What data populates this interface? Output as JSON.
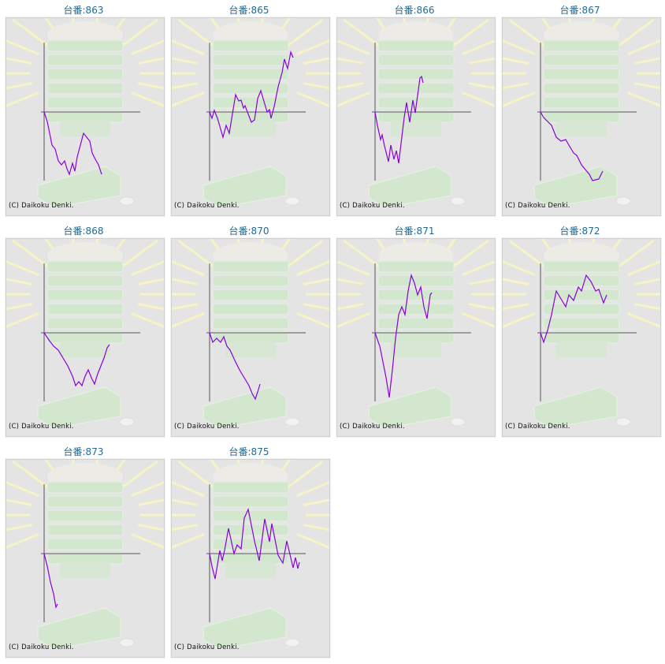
{
  "copyright": "(C) Daikoku Denki.",
  "colors": {
    "line": "#8800dd",
    "axis": "#555555",
    "title": "#1f6a95",
    "panel_bg": "#e4e4e4"
  },
  "charts": [
    {
      "title": "台番:863"
    },
    {
      "title": "台番:865"
    },
    {
      "title": "台番:866"
    },
    {
      "title": "台番:867"
    },
    {
      "title": "台番:868"
    },
    {
      "title": "台番:870"
    },
    {
      "title": "台番:871"
    },
    {
      "title": "台番:872"
    },
    {
      "title": "台番:873"
    },
    {
      "title": "台番:875"
    }
  ],
  "chart_data": [
    {
      "type": "line",
      "xlim": [
        0,
        122
      ],
      "ylim": [
        -88,
        88
      ],
      "x": [
        0,
        4,
        7,
        10,
        14,
        18,
        22,
        26,
        29,
        32,
        36,
        39,
        42,
        46,
        50,
        54,
        58,
        61,
        65,
        69,
        73
      ],
      "y": [
        0,
        -12,
        -27,
        -42,
        -47,
        -62,
        -67,
        -62,
        -72,
        -79,
        -65,
        -75,
        -57,
        -42,
        -27,
        -32,
        -37,
        -52,
        -60,
        -67,
        -79
      ]
    },
    {
      "type": "line",
      "xlim": [
        0,
        122
      ],
      "ylim": [
        -88,
        88
      ],
      "x": [
        0,
        3,
        6,
        10,
        17,
        21,
        25,
        33,
        37,
        40,
        43,
        45,
        53,
        57,
        61,
        65,
        73,
        76,
        78,
        82,
        87,
        92,
        95,
        99,
        103,
        106
      ],
      "y": [
        0,
        -8,
        2,
        -8,
        -32,
        -17,
        -27,
        22,
        14,
        15,
        5,
        8,
        -13,
        -10,
        17,
        27,
        0,
        3,
        -8,
        7,
        32,
        50,
        67,
        55,
        76,
        69
      ]
    },
    {
      "type": "line",
      "xlim": [
        0,
        122
      ],
      "ylim": [
        -88,
        88
      ],
      "x": [
        0,
        3,
        7,
        9,
        12,
        17,
        20,
        24,
        27,
        30,
        33,
        37,
        40,
        44,
        48,
        51,
        57,
        59,
        61
      ],
      "y": [
        0,
        -17,
        -35,
        -29,
        -43,
        -63,
        -42,
        -60,
        -49,
        -65,
        -40,
        -7,
        12,
        -13,
        15,
        -1,
        43,
        45,
        37
      ]
    },
    {
      "type": "line",
      "xlim": [
        0,
        122
      ],
      "ylim": [
        -88,
        88
      ],
      "x": [
        0,
        4,
        9,
        14,
        20,
        26,
        32,
        36,
        42,
        46,
        52,
        56,
        62,
        66,
        74,
        79
      ],
      "y": [
        0,
        -7,
        -12,
        -17,
        -32,
        -37,
        -35,
        -42,
        -52,
        -55,
        -67,
        -72,
        -79,
        -87,
        -85,
        -75
      ]
    },
    {
      "type": "line",
      "xlim": [
        0,
        122
      ],
      "ylim": [
        -88,
        88
      ],
      "x": [
        0,
        6,
        12,
        18,
        24,
        30,
        36,
        40,
        44,
        48,
        52,
        56,
        60,
        64,
        68,
        72,
        76,
        80,
        83
      ],
      "y": [
        0,
        -9,
        -17,
        -22,
        -32,
        -42,
        -55,
        -67,
        -62,
        -67,
        -55,
        -47,
        -57,
        -65,
        -52,
        -42,
        -32,
        -19,
        -15
      ]
    },
    {
      "type": "line",
      "xlim": [
        0,
        122
      ],
      "ylim": [
        -88,
        88
      ],
      "x": [
        0,
        4,
        9,
        14,
        18,
        22,
        26,
        32,
        38,
        44,
        50,
        54,
        58,
        62,
        64
      ],
      "y": [
        0,
        -12,
        -7,
        -12,
        -5,
        -17,
        -22,
        -35,
        -47,
        -57,
        -67,
        -77,
        -84,
        -72,
        -65
      ]
    },
    {
      "type": "line",
      "xlim": [
        0,
        122
      ],
      "ylim": [
        -88,
        88
      ],
      "x": [
        0,
        6,
        10,
        14,
        18,
        22,
        26,
        30,
        34,
        38,
        42,
        46,
        50,
        54,
        58,
        62,
        66,
        70,
        72
      ],
      "y": [
        0,
        -17,
        -37,
        -57,
        -82,
        -47,
        -7,
        23,
        33,
        23,
        53,
        73,
        63,
        48,
        58,
        33,
        18,
        48,
        51
      ]
    },
    {
      "type": "line",
      "xlim": [
        0,
        122
      ],
      "ylim": [
        -88,
        88
      ],
      "x": [
        0,
        4,
        9,
        14,
        20,
        26,
        32,
        36,
        42,
        48,
        52,
        58,
        64,
        70,
        74,
        80,
        84
      ],
      "y": [
        0,
        -12,
        3,
        23,
        53,
        43,
        33,
        48,
        41,
        58,
        53,
        73,
        65,
        53,
        55,
        38,
        48
      ]
    },
    {
      "type": "line",
      "xlim": [
        0,
        122
      ],
      "ylim": [
        -88,
        88
      ],
      "x": [
        0,
        4,
        8,
        12,
        15,
        17
      ],
      "y": [
        0,
        -16,
        -36,
        -51,
        -68,
        -64
      ]
    },
    {
      "type": "line",
      "xlim": [
        0,
        122
      ],
      "ylim": [
        -88,
        88
      ],
      "x": [
        0,
        3,
        7,
        13,
        16,
        19,
        24,
        31,
        35,
        40,
        44,
        49,
        57,
        63,
        70,
        76,
        79,
        87,
        93,
        98,
        106,
        109,
        112,
        114
      ],
      "y": [
        0,
        -16,
        -32,
        4,
        -9,
        4,
        32,
        0,
        11,
        6,
        45,
        56,
        16,
        -9,
        44,
        15,
        38,
        -2,
        -12,
        16,
        -18,
        -5,
        -19,
        -11
      ]
    }
  ]
}
